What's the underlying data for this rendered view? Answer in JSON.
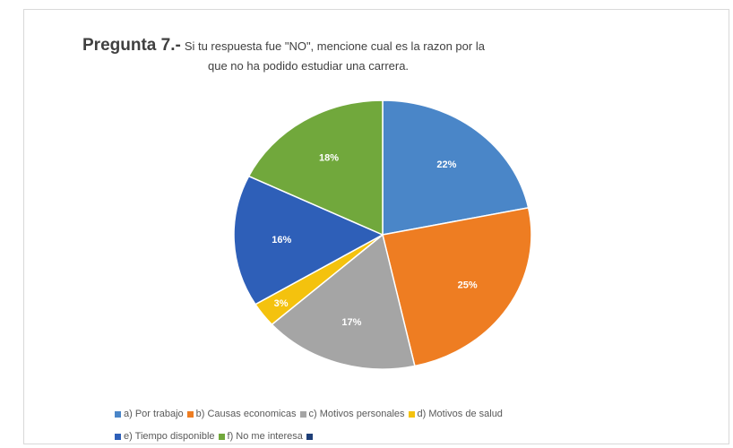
{
  "title": {
    "bold": "Pregunta 7.-",
    "line1": "Si tu respuesta fue \"NO\", mencione cual es la razon por la",
    "line2": "que no ha podido estudiar una carrera."
  },
  "chart_data": {
    "type": "pie",
    "slices": [
      {
        "label": "a) Por trabajo",
        "value": 22,
        "display": "22%",
        "color": "#4a86c8"
      },
      {
        "label": "b) Causas economicas",
        "value": 25,
        "display": "25%",
        "color": "#ee7d22"
      },
      {
        "label": "c) Motivos personales",
        "value": 17,
        "display": "17%",
        "color": "#a5a5a5"
      },
      {
        "label": "d) Motivos de salud",
        "value": 3,
        "display": "3%",
        "color": "#f4c20e"
      },
      {
        "label": "e) Tiempo disponible",
        "value": 16,
        "display": "16%",
        "color": "#2e5fb8"
      },
      {
        "label": "f) No me interesa",
        "value": 18,
        "display": "18%",
        "color": "#71a83c"
      }
    ],
    "legend_extra_color": "#1f3f78",
    "legend_position": "bottom"
  }
}
